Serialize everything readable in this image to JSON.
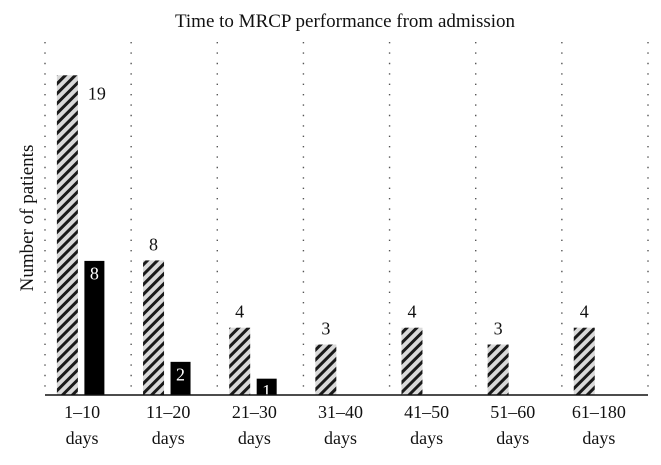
{
  "chart_data": {
    "type": "bar",
    "title": "Time to MRCP performance from admission",
    "xlabel": "",
    "ylabel": "Number of patients",
    "categories": [
      [
        "1–10",
        "days"
      ],
      [
        "11–20",
        "days"
      ],
      [
        "21–30",
        "days"
      ],
      [
        "31–40",
        "days"
      ],
      [
        "41–50",
        "days"
      ],
      [
        "51–60",
        "days"
      ],
      [
        "61–180",
        "days"
      ]
    ],
    "series": [
      {
        "values": [
          19,
          8,
          4,
          3,
          4,
          3,
          4
        ],
        "pattern": "hatched",
        "color": "#000000"
      },
      {
        "values": [
          8,
          2,
          1,
          null,
          null,
          null,
          null
        ],
        "pattern": "solid",
        "color": "#000000"
      }
    ],
    "ylim": [
      0,
      20
    ],
    "grid": "vertical-dotted",
    "legend": "none"
  }
}
